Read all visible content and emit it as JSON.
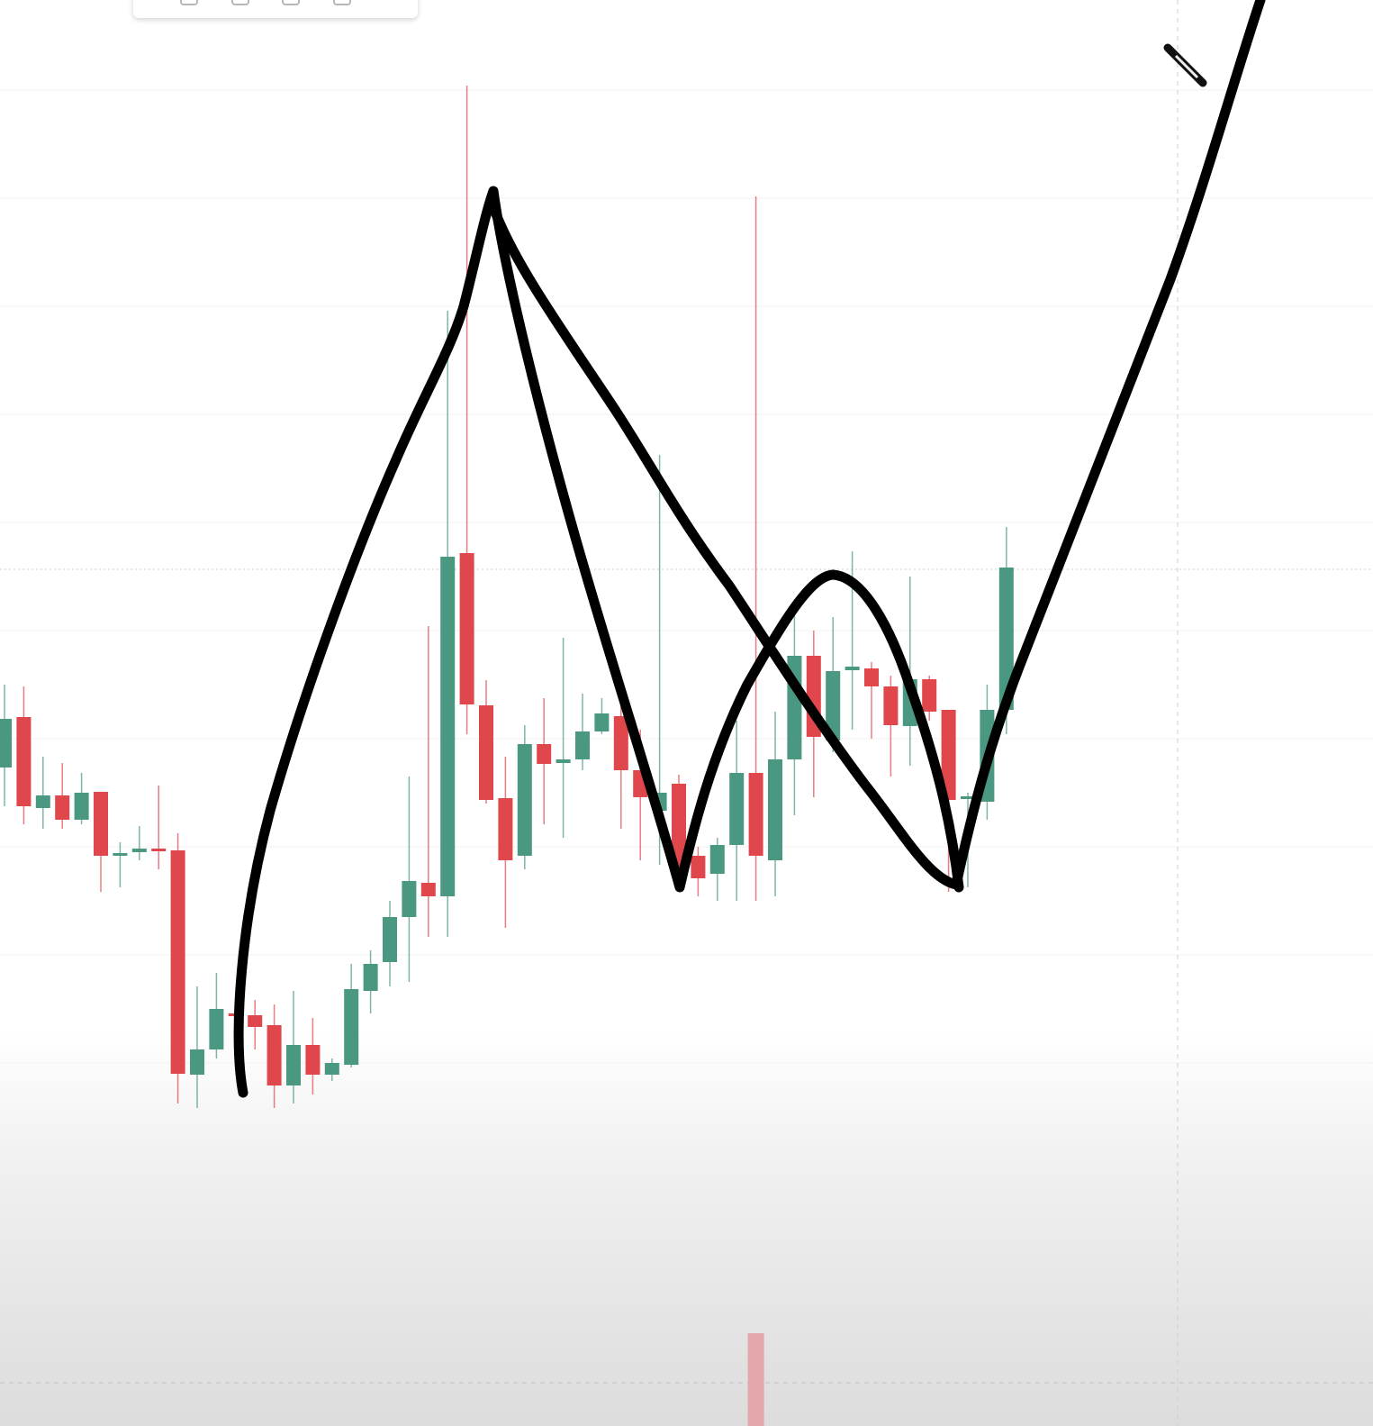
{
  "toolbar": {
    "icons": [
      "more-icon",
      "add-layout-icon",
      "settings-icon",
      "camera-icon",
      "trash-icon"
    ]
  },
  "chart_data": {
    "type": "candlestick",
    "title": "",
    "xlabel": "",
    "ylabel": "",
    "colors": {
      "up": "#4a9782",
      "down": "#e0474c",
      "drawing": "#000000",
      "volume": "#e3a6aa"
    },
    "grid": true,
    "crosshair": true,
    "fields": [
      "open",
      "high",
      "low",
      "close"
    ],
    "candles": [
      [
        74.8,
        84.0,
        70.5,
        80.2
      ],
      [
        80.4,
        83.8,
        68.5,
        70.5
      ],
      [
        70.3,
        76.0,
        68.0,
        71.7
      ],
      [
        71.7,
        75.3,
        68.0,
        69.0
      ],
      [
        69.0,
        74.2,
        68.5,
        72.0
      ],
      [
        72.1,
        72.1,
        61.0,
        65.0
      ],
      [
        65.0,
        66.5,
        61.5,
        65.3
      ],
      [
        65.4,
        68.3,
        64.5,
        65.8
      ],
      [
        65.8,
        72.8,
        63.5,
        65.6
      ],
      [
        65.6,
        67.5,
        37.5,
        40.8
      ],
      [
        40.7,
        50.5,
        37.0,
        43.5
      ],
      [
        43.5,
        52.0,
        42.5,
        48.0
      ],
      [
        47.5,
        50.0,
        46.0,
        47.2
      ],
      [
        47.3,
        49.0,
        43.5,
        46.0
      ],
      [
        46.2,
        48.5,
        37.0,
        39.5
      ],
      [
        39.5,
        50.0,
        37.5,
        44.0
      ],
      [
        44.0,
        47.0,
        38.5,
        40.7
      ],
      [
        40.7,
        42.5,
        40.0,
        42.0
      ],
      [
        41.8,
        53.0,
        41.5,
        50.2
      ],
      [
        50.0,
        54.5,
        47.5,
        53.0
      ],
      [
        53.2,
        60.0,
        50.5,
        58.2
      ],
      [
        58.2,
        73.8,
        51.0,
        62.2
      ],
      [
        62.0,
        90.5,
        56.0,
        60.5
      ],
      [
        60.5,
        125.5,
        56.0,
        98.2
      ],
      [
        98.6,
        150.5,
        78.5,
        81.8
      ],
      [
        81.7,
        84.5,
        70.8,
        71.2
      ],
      [
        71.4,
        76.0,
        57.0,
        64.5
      ],
      [
        65.0,
        79.5,
        63.5,
        77.4
      ],
      [
        77.4,
        82.5,
        68.5,
        75.2
      ],
      [
        75.3,
        89.2,
        67.0,
        75.7
      ],
      [
        75.7,
        83.0,
        74.5,
        78.8
      ],
      [
        78.8,
        82.5,
        78.5,
        80.8
      ],
      [
        80.5,
        83.0,
        68.0,
        74.5
      ],
      [
        74.5,
        79.0,
        64.5,
        71.5
      ],
      [
        70.0,
        109.5,
        64.0,
        72.0
      ],
      [
        73.0,
        74.0,
        61.0,
        63.8
      ],
      [
        65.0,
        66.0,
        60.5,
        62.5
      ],
      [
        63.0,
        67.0,
        60.0,
        66.2
      ],
      [
        66.2,
        80.0,
        60.0,
        74.2
      ],
      [
        74.2,
        138.2,
        60.0,
        65.0
      ],
      [
        64.5,
        81.0,
        60.5,
        75.7
      ],
      [
        75.7,
        93.5,
        69.5,
        87.2
      ],
      [
        87.2,
        90.0,
        71.5,
        78.2
      ],
      [
        77.8,
        91.5,
        76.5,
        85.5
      ],
      [
        85.6,
        98.8,
        79.0,
        86.0
      ],
      [
        85.8,
        86.5,
        78.0,
        83.8
      ],
      [
        83.8,
        85.0,
        73.8,
        79.5
      ],
      [
        79.4,
        96.0,
        75.0,
        84.6
      ],
      [
        84.6,
        85.0,
        80.0,
        81.0
      ],
      [
        81.2,
        81.2,
        61.0,
        71.2
      ],
      [
        71.4,
        72.0,
        61.5,
        71.6
      ],
      [
        71.0,
        84.0,
        69.0,
        81.2
      ],
      [
        81.2,
        101.5,
        78.5,
        97.0
      ]
    ],
    "volume_highlight_index": 39,
    "crosshair_price": 96.8
  }
}
